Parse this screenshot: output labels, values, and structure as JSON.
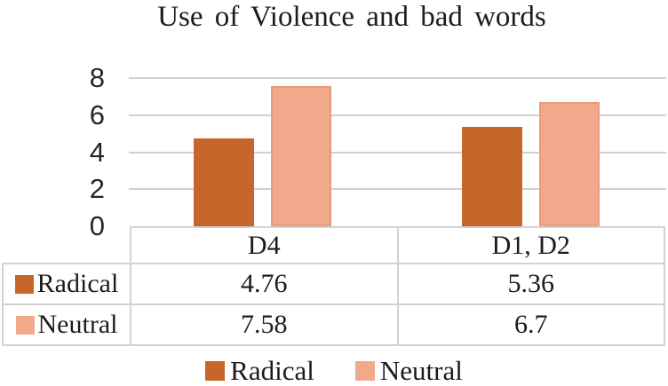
{
  "chart_data": {
    "type": "bar",
    "title": "Use of Violence and bad words",
    "categories": [
      "D4",
      "D1, D2"
    ],
    "series": [
      {
        "name": "Radical",
        "color": "#c6662a",
        "values": [
          4.76,
          5.36
        ]
      },
      {
        "name": "Neutral",
        "color": "#f2a88a",
        "values": [
          7.58,
          6.7
        ]
      }
    ],
    "xlabel": "",
    "ylabel": "",
    "ylim": [
      0,
      8
    ],
    "yticks": [
      0,
      2,
      4,
      6,
      8
    ],
    "gridlines": "horizontal",
    "legend_position": "bottom",
    "has_data_table": true
  }
}
